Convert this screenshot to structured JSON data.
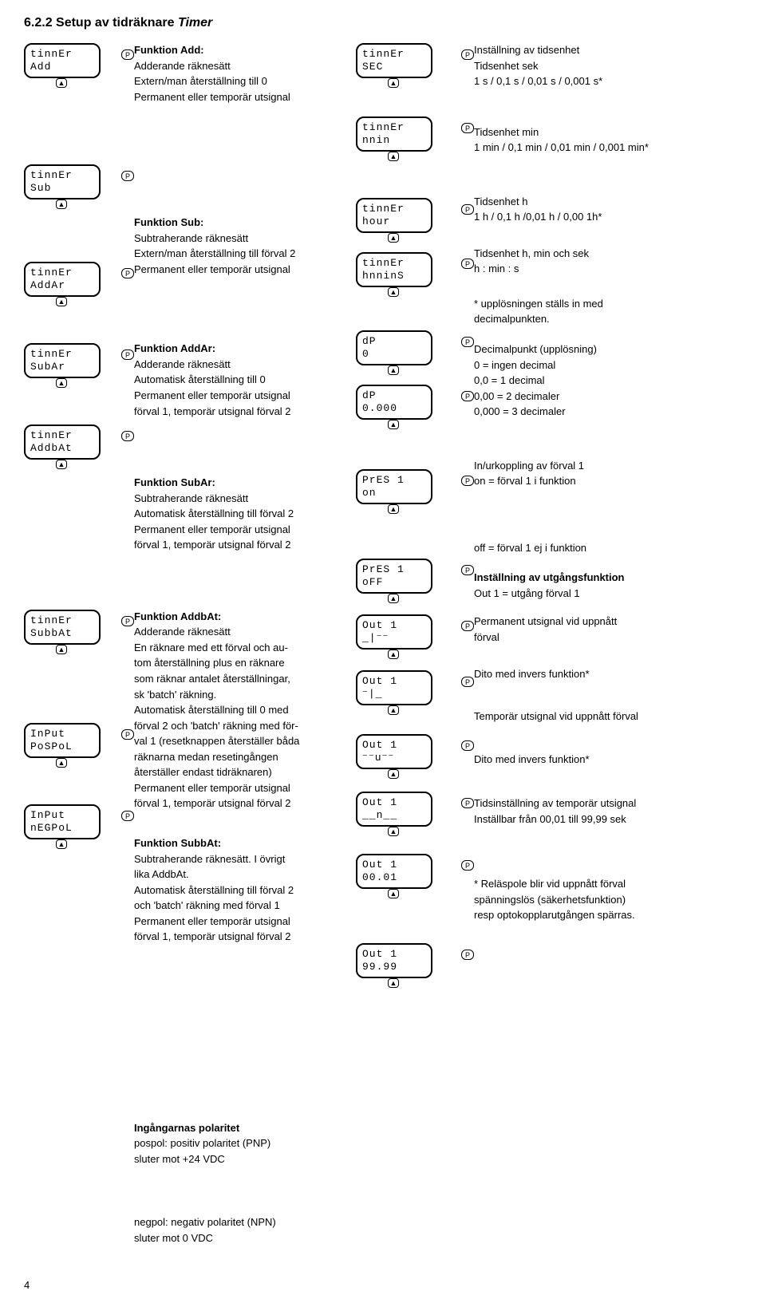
{
  "title_prefix": "6.2.2 Setup av tidräknare ",
  "title_em": "Timer",
  "left_lcds": [
    {
      "l1": "tinnEr",
      "l2": "Add"
    },
    {
      "l1": "tinnEr",
      "l2": "Sub"
    },
    {
      "l1": "tinnEr",
      "l2": "AddAr"
    },
    {
      "l1": "tinnEr",
      "l2": "SubAr"
    },
    {
      "l1": "tinnEr",
      "l2": "AddbAt"
    },
    {
      "l1": "tinnEr",
      "l2": "SubbAt"
    },
    {
      "l1": "InPut",
      "l2": "PoSPoL"
    },
    {
      "l1": "InPut",
      "l2": "nEGPoL"
    }
  ],
  "functions": [
    {
      "title": "Funktion Add:",
      "lines": [
        "Adderande räknesätt",
        "Extern/man återställning till 0",
        "Permanent eller temporär utsignal"
      ]
    },
    {
      "title": "Funktion Sub:",
      "lines": [
        "Subtraherande räknesätt",
        "Extern/man återställning till förval 2",
        "Permanent eller temporär utsignal"
      ]
    },
    {
      "title": "Funktion AddAr:",
      "lines": [
        "Adderande räknesätt",
        "Automatisk återställning till 0",
        "Permanent eller temporär utsignal",
        "förval 1, temporär utsignal förval 2"
      ]
    },
    {
      "title": "Funktion SubAr:",
      "lines": [
        "Subtraherande räknesätt",
        "Automatisk återställning till förval 2",
        "Permanent eller temporär utsignal",
        "förval 1, temporär utsignal förval 2"
      ]
    },
    {
      "title": "Funktion AddbAt:",
      "lines": [
        "Adderande räknesätt",
        "En räknare med ett förval och au-",
        "tom återställning plus en räknare",
        "som räknar antalet återställningar,",
        "sk 'batch' räkning.",
        "Automatisk återställning till 0 med",
        "förval 2 och 'batch' räkning med för-",
        "val 1 (resetknappen återställer båda",
        "räknarna medan resetingången",
        "återställer endast tidräknaren)",
        "Permanent eller temporär utsignal",
        "förval 1, temporär utsignal förval 2"
      ]
    },
    {
      "title": "Funktion SubbAt:",
      "lines": [
        "Subtraherande räknesätt. I övrigt",
        "lika AddbAt.",
        "Automatisk återställning till förval 2",
        "och 'batch' räkning med förval 1",
        "Permanent eller temporär utsignal",
        "förval 1, temporär utsignal förval 2"
      ]
    },
    {
      "title": "Ingångarnas polaritet",
      "lines": [
        "pospol: positiv polaritet (PNP)",
        "sluter mot +24 VDC"
      ]
    },
    {
      "title": "",
      "lines": [
        "negpol: negativ polaritet (NPN)",
        "sluter mot 0 VDC"
      ]
    }
  ],
  "ctr_lcds": [
    {
      "l1": "tinnEr",
      "l2": "SEC"
    },
    {
      "l1": "tinnEr",
      "l2": "nnin"
    },
    {
      "l1": "tinnEr",
      "l2": "hour"
    },
    {
      "l1": "tinnEr",
      "l2": "hnninS"
    },
    {
      "l1": "dP",
      "l2": "    0"
    },
    {
      "l1": "dP",
      "l2": "0.000"
    },
    {
      "l1": "PrES 1",
      "l2": "   on"
    },
    {
      "l1": "PrES 1",
      "l2": "  oFF"
    },
    {
      "l1": "Out  1",
      "l2": " _|⁻⁻"
    },
    {
      "l1": "Out  1",
      "l2": " ⁻|_ "
    },
    {
      "l1": "Out  1",
      "l2": "⁻⁻u⁻⁻"
    },
    {
      "l1": "Out  1",
      "l2": "__n__"
    },
    {
      "l1": "Out  1",
      "l2": "00.01"
    },
    {
      "l1": "Out  1",
      "l2": "99.99"
    }
  ],
  "right_blocks": [
    {
      "lines": [
        "Inställning av tidsenhet",
        "Tidsenhet sek",
        "1 s / 0,1 s / 0,01 s / 0,001 s*"
      ]
    },
    {
      "lines": [
        "Tidsenhet min",
        "1 min / 0,1 min / 0,01 min / 0,001 min*"
      ]
    },
    {
      "lines": [
        "Tidsenhet h",
        "1 h / 0,1 h /0,01 h / 0,00 1h*"
      ]
    },
    {
      "lines": [
        "Tidsenhet h, min och sek",
        "h : min : s"
      ]
    },
    {
      "lines": [
        "* upplösningen ställs in med",
        "decimalpunkten."
      ]
    },
    {
      "lines": [
        "Decimalpunkt (upplösning)",
        "0       = ingen decimal",
        "0,0    = 1 decimal",
        "0,00  = 2 decimaler",
        "0,000 = 3 decimaler"
      ]
    },
    {
      "lines": [
        "In/urkoppling av förval 1",
        "",
        "on = förval 1 i funktion"
      ]
    },
    {
      "lines": [
        "off = förval 1 ej i funktion"
      ]
    },
    {
      "bold": "Inställning av utgångsfunktion",
      "lines": [
        "Out 1 =  utgång förval  1"
      ]
    },
    {
      "lines": [
        "Permanent utsignal vid uppnått",
        "förval"
      ]
    },
    {
      "lines": [
        "Dito med invers funktion*"
      ]
    },
    {
      "lines": [
        "Temporär utsignal vid uppnått förval"
      ]
    },
    {
      "lines": [
        "Dito med invers funktion*"
      ]
    },
    {
      "lines": [
        "Tidsinställning av temporär utsignal",
        "Inställbar från 00,01 till 99,99 sek"
      ]
    },
    {
      "lines": [
        "* Reläspole blir vid uppnått förval",
        "spänningslös (säkerhetsfunktion)",
        "resp optokopplarutgången spärras."
      ]
    }
  ],
  "page_number": "4",
  "left_spacing": [
    0,
    90,
    60,
    40,
    40,
    170,
    80,
    40
  ],
  "mid_spacing": [
    0,
    118,
    60,
    50,
    50,
    10,
    200,
    40
  ],
  "ctr_spacing": [
    0,
    30,
    40,
    6,
    36,
    6,
    44,
    50,
    8,
    8,
    18,
    10,
    16,
    50
  ],
  "right_spacing": [
    0,
    32,
    36,
    14,
    12,
    6,
    36,
    52,
    6,
    4,
    14,
    22,
    22,
    24,
    50
  ]
}
